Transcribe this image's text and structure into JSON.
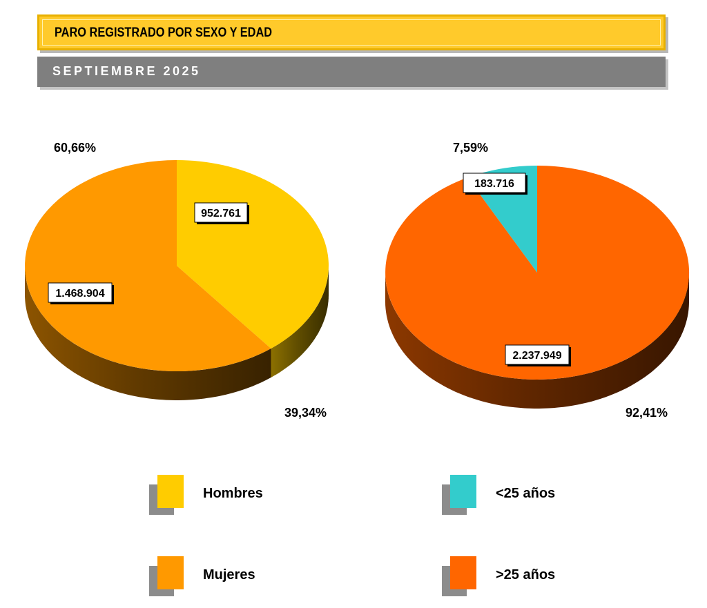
{
  "header": {
    "title": "PARO REGISTRADO POR SEXO Y EDAD",
    "subtitle": "SEPTIEMBRE 2025"
  },
  "colors": {
    "hombres": "#ffcc00",
    "mujeres": "#ff9900",
    "menores_25": "#33cccc",
    "mayores_25": "#ff6600"
  },
  "chart_data": [
    {
      "type": "pie",
      "title": "",
      "slices": [
        {
          "name": "Hombres",
          "value": 952761,
          "value_label": "952.761",
          "percent_label": "39,34%",
          "color": "#ffcc00"
        },
        {
          "name": "Mujeres",
          "value": 1468904,
          "value_label": "1.468.904",
          "percent_label": "60,66%",
          "color": "#ff9900"
        }
      ],
      "legend": "bottom"
    },
    {
      "type": "pie",
      "title": "",
      "slices": [
        {
          "name": "<25 años",
          "value": 183716,
          "value_label": "183.716",
          "percent_label": "7,59%",
          "color": "#33cccc"
        },
        {
          "name": ">25 años",
          "value": 2237949,
          "value_label": "2.237.949",
          "percent_label": "92,41%",
          "color": "#ff6600"
        }
      ],
      "legend": "bottom"
    }
  ]
}
